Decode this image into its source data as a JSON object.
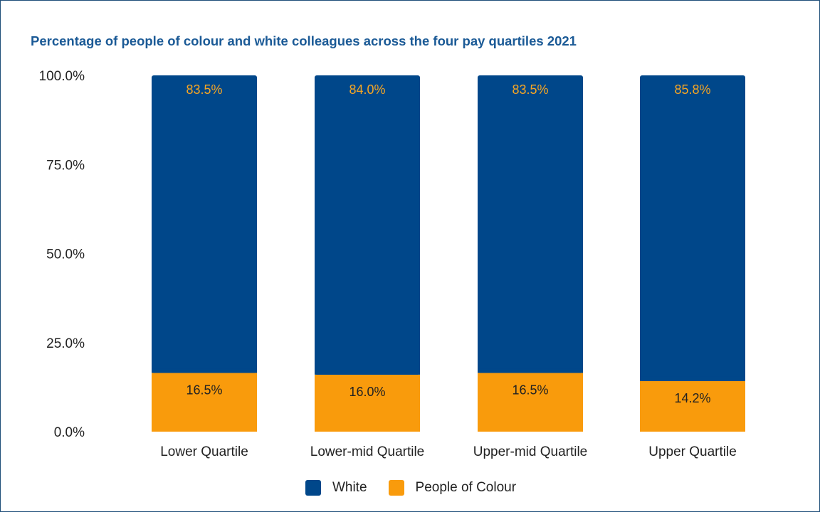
{
  "chart_data": {
    "type": "bar",
    "stacked": true,
    "title": "Percentage of people of colour and white colleagues across the four pay quartiles 2021",
    "categories": [
      "Lower Quartile",
      "Lower-mid Quartile",
      "Upper-mid Quartile",
      "Upper Quartile"
    ],
    "series": [
      {
        "name": "People of Colour",
        "color": "#f99b0c",
        "label_color": "#222222",
        "values": [
          16.5,
          16.0,
          16.5,
          14.2
        ],
        "labels": [
          "16.5%",
          "16.0%",
          "16.5%",
          "14.2%"
        ]
      },
      {
        "name": "White",
        "color": "#00478a",
        "label_color": "#f5a623",
        "values": [
          83.5,
          84.0,
          83.5,
          85.8
        ],
        "labels": [
          "83.5%",
          "84.0%",
          "83.5%",
          "85.8%"
        ]
      }
    ],
    "ylim": [
      0,
      100
    ],
    "yticks": [
      "0.0%",
      "25.0%",
      "50.0%",
      "75.0%",
      "100.0%"
    ],
    "grid": false,
    "legend_position": "bottom",
    "legend_order": [
      "White",
      "People of Colour"
    ]
  }
}
